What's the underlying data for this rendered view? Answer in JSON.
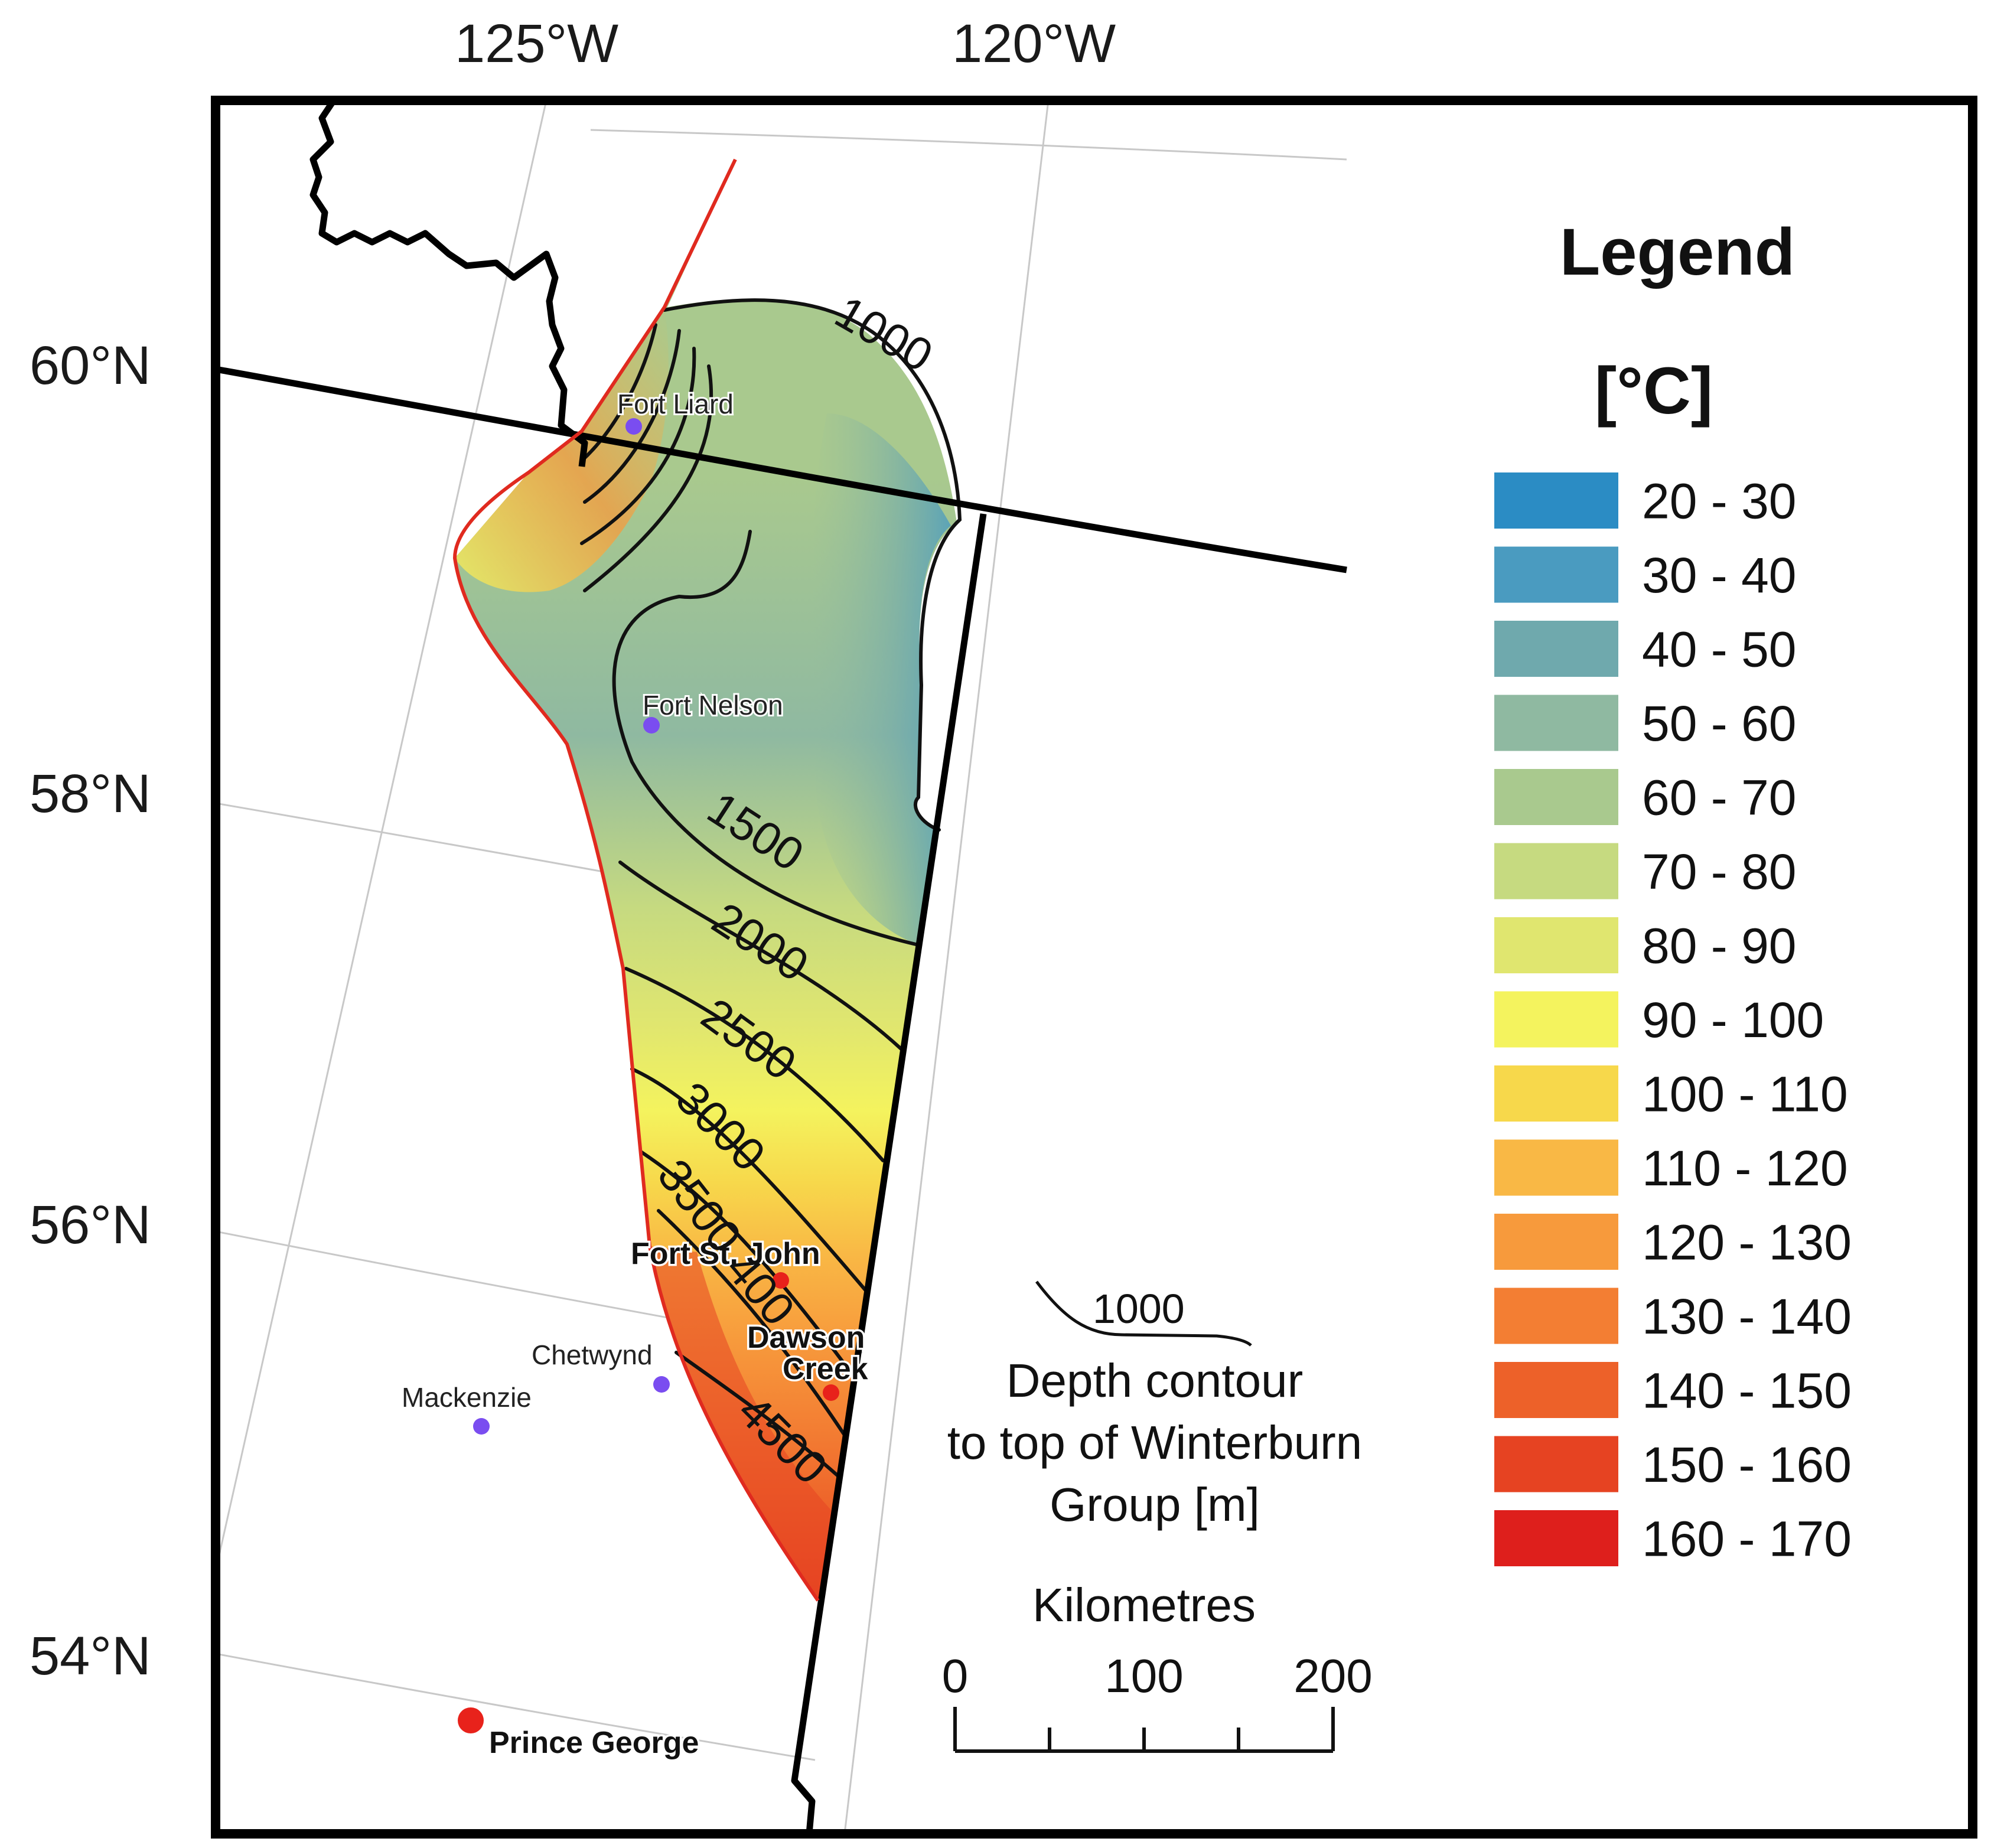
{
  "axes": {
    "longitude_labels": [
      "125°W",
      "120°W"
    ],
    "latitude_labels": [
      "60°N",
      "58°N",
      "56°N",
      "54°N"
    ]
  },
  "legend": {
    "title": "Legend",
    "unit": "[°C]",
    "classes": [
      {
        "label": "20 - 30",
        "color": "#2b8cc4"
      },
      {
        "label": "30 - 40",
        "color": "#4a9bc0"
      },
      {
        "label": "40 - 50",
        "color": "#6fa9ad"
      },
      {
        "label": "50 - 60",
        "color": "#8fb9a1"
      },
      {
        "label": "60 - 70",
        "color": "#a9c98e"
      },
      {
        "label": "70 - 80",
        "color": "#c6da80"
      },
      {
        "label": "80 - 90",
        "color": "#e0e66f"
      },
      {
        "label": "90 - 100",
        "color": "#f4f35e"
      },
      {
        "label": "100 - 110",
        "color": "#f7d84b"
      },
      {
        "label": "110 - 120",
        "color": "#f9b845"
      },
      {
        "label": "120 - 130",
        "color": "#f79a3c"
      },
      {
        "label": "130 - 140",
        "color": "#f37e33"
      },
      {
        "label": "140 - 150",
        "color": "#ed6129"
      },
      {
        "label": "150 - 160",
        "color": "#e64322"
      },
      {
        "label": "160 - 170",
        "color": "#de1f1c"
      }
    ]
  },
  "contours": {
    "labels": [
      "1000",
      "1500",
      "2000",
      "2500",
      "3000",
      "3500",
      "400",
      "4500"
    ]
  },
  "contour_legend": {
    "sample_label": "1000",
    "caption_lines": [
      "Depth contour",
      "to top of Winterburn",
      "Group [m]"
    ]
  },
  "scale_bar": {
    "title": "Kilometres",
    "ticks": [
      "0",
      "100",
      "200"
    ]
  },
  "places": {
    "fort_liard": "Fort Liard",
    "fort_nelson": "Fort Nelson",
    "fort_st_john": "Fort St. John",
    "dawson_creek_line1": "Dawson",
    "dawson_creek_line2": "Creek",
    "chetwynd": "Chetwynd",
    "mackenzie": "Mackenzie",
    "prince_george": "Prince George"
  },
  "colors": {
    "frame": "#000000",
    "graticule": "#c8c8c8",
    "extent_outline": "#e02a1f",
    "contour_line": "#111111",
    "small_town": "#7a4df0",
    "major_city": "#e8221b"
  }
}
